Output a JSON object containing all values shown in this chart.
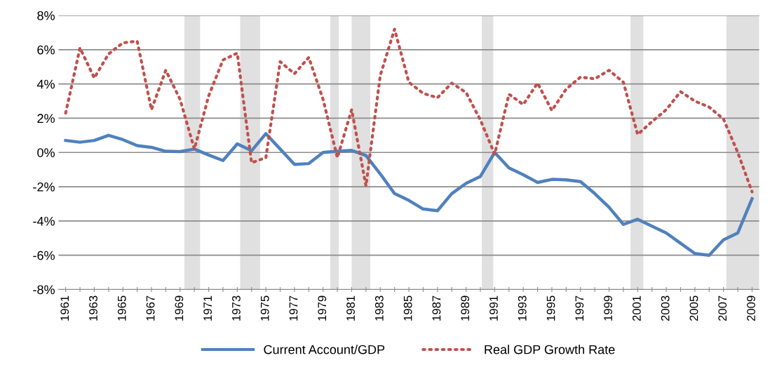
{
  "chart_data": {
    "type": "line",
    "x": [
      1961,
      1962,
      1963,
      1964,
      1965,
      1966,
      1967,
      1968,
      1969,
      1970,
      1971,
      1972,
      1973,
      1974,
      1975,
      1976,
      1977,
      1978,
      1979,
      1980,
      1981,
      1982,
      1983,
      1984,
      1985,
      1986,
      1987,
      1988,
      1989,
      1990,
      1991,
      1992,
      1993,
      1994,
      1995,
      1996,
      1997,
      1998,
      1999,
      2000,
      2001,
      2002,
      2003,
      2004,
      2005,
      2006,
      2007,
      2008,
      2009
    ],
    "series": [
      {
        "name": "Current Account/GDP",
        "color": "#4f81bd",
        "line_style": "solid",
        "values": [
          0.7,
          0.6,
          0.7,
          1.0,
          0.75,
          0.4,
          0.3,
          0.07,
          0.05,
          0.2,
          -0.15,
          -0.47,
          0.5,
          0.1,
          1.1,
          0.2,
          -0.7,
          -0.65,
          0.0,
          0.07,
          0.12,
          -0.18,
          -1.25,
          -2.4,
          -2.8,
          -3.3,
          -3.4,
          -2.4,
          -1.8,
          -1.4,
          0.0,
          -0.9,
          -1.3,
          -1.75,
          -1.57,
          -1.6,
          -1.7,
          -2.4,
          -3.2,
          -4.2,
          -3.9,
          -4.3,
          -4.7,
          -5.3,
          -5.9,
          -6.0,
          -5.1,
          -4.7,
          -2.7
        ]
      },
      {
        "name": "Real GDP Growth Rate",
        "color": "#c0504d",
        "line_style": "dotted",
        "values": [
          2.3,
          6.1,
          4.35,
          5.75,
          6.4,
          6.5,
          2.5,
          4.8,
          3.1,
          0.2,
          3.3,
          5.4,
          5.8,
          -0.6,
          -0.3,
          5.3,
          4.6,
          5.55,
          3.1,
          -0.3,
          2.5,
          -1.95,
          4.5,
          7.2,
          4.1,
          3.45,
          3.2,
          4.05,
          3.5,
          1.9,
          -0.1,
          3.4,
          2.8,
          4.05,
          2.45,
          3.7,
          4.4,
          4.3,
          4.8,
          4.1,
          1.05,
          1.8,
          2.5,
          3.55,
          3.0,
          2.65,
          1.95,
          0.0,
          -2.3
        ]
      }
    ],
    "xlim": [
      1960.5,
      2009.5
    ],
    "xticks": [
      1961,
      {
        "value": 1962,
        "label": null
      },
      1963,
      {
        "value": 1964,
        "label": null
      },
      1965,
      {
        "value": 1966,
        "label": null
      },
      1967,
      {
        "value": 1968,
        "label": null
      },
      1969,
      {
        "value": 1970,
        "label": null
      },
      1971,
      {
        "value": 1972,
        "label": null
      },
      1973,
      {
        "value": 1974,
        "label": null
      },
      1975,
      {
        "value": 1976,
        "label": null
      },
      1977,
      {
        "value": 1978,
        "label": null
      },
      1979,
      {
        "value": 1980,
        "label": null
      },
      1981,
      {
        "value": 1982,
        "label": null
      },
      1983,
      {
        "value": 1984,
        "label": null
      },
      1985,
      {
        "value": 1986,
        "label": null
      },
      1987,
      {
        "value": 1988,
        "label": null
      },
      1989,
      {
        "value": 1990,
        "label": null
      },
      1991,
      {
        "value": 1992,
        "label": null
      },
      1993,
      {
        "value": 1994,
        "label": null
      },
      1995,
      {
        "value": 1996,
        "label": null
      },
      1997,
      {
        "value": 1998,
        "label": null
      },
      1999,
      {
        "value": 2000,
        "label": null
      },
      2001,
      {
        "value": 2002,
        "label": null
      },
      2003,
      {
        "value": 2004,
        "label": null
      },
      2005,
      {
        "value": 2006,
        "label": null
      },
      2007,
      {
        "value": 2008,
        "label": null
      },
      2009
    ],
    "ylim": [
      -8,
      8
    ],
    "yticks": [
      {
        "value": -8,
        "label": "-8%"
      },
      {
        "value": -6,
        "label": "-6%"
      },
      {
        "value": -4,
        "label": "-4%"
      },
      {
        "value": -2,
        "label": "-2%"
      },
      {
        "value": 0,
        "label": "0%"
      },
      {
        "value": 2,
        "label": "2%"
      },
      {
        "value": 4,
        "label": "4%"
      },
      {
        "value": 6,
        "label": "6%"
      },
      {
        "value": 8,
        "label": "8%"
      }
    ],
    "bands": [
      {
        "axis": "x",
        "from": 1969.3,
        "to": 1970.4,
        "color": "#e0e0e0"
      },
      {
        "axis": "x",
        "from": 1973.2,
        "to": 1974.6,
        "color": "#e0e0e0"
      },
      {
        "axis": "x",
        "from": 1979.5,
        "to": 1980.1,
        "color": "#e0e0e0"
      },
      {
        "axis": "x",
        "from": 1981.0,
        "to": 1982.3,
        "color": "#e0e0e0"
      },
      {
        "axis": "x",
        "from": 1990.1,
        "to": 1990.9,
        "color": "#e0e0e0"
      },
      {
        "axis": "x",
        "from": 2000.5,
        "to": 2001.4,
        "color": "#e0e0e0"
      },
      {
        "axis": "x",
        "from": 2007.2,
        "to": 2009.5,
        "color": "#e0e0e0"
      }
    ],
    "grid": "y",
    "legend": "bottom",
    "marker": "none"
  }
}
